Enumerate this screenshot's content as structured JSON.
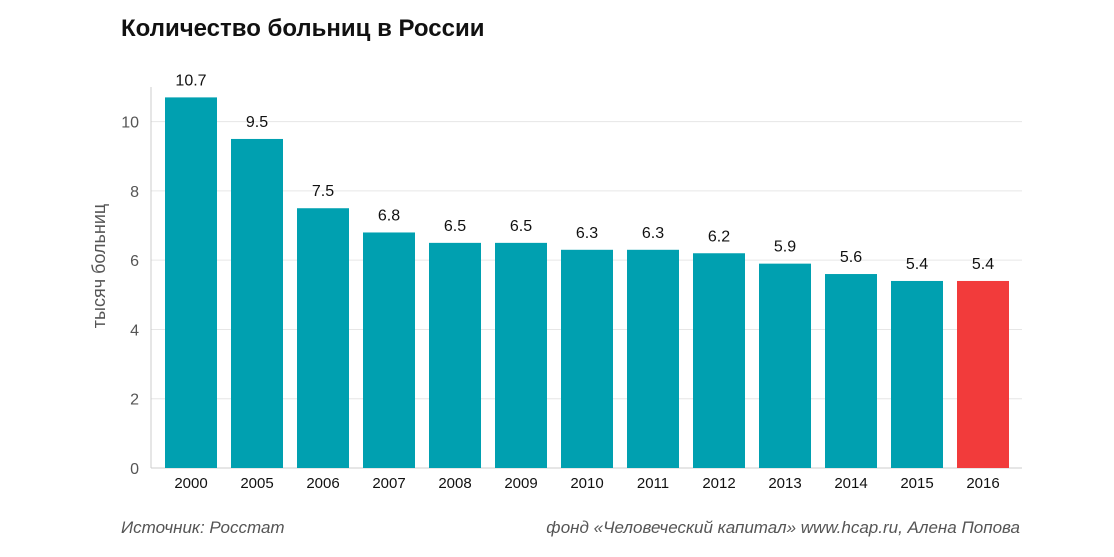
{
  "title": "Количество больниц в России",
  "footer": {
    "source": "Источник: Росстат",
    "credit": "фонд «Человеческий капитал» www.hcap.ru, Алена Попова"
  },
  "colors": {
    "bar": "#00a0b0",
    "highlight": "#f23b3b",
    "grid": "#e6e6e6",
    "axis": "#cccccc",
    "text": "#111111",
    "tick": "#555555"
  },
  "chart_data": {
    "type": "bar",
    "categories": [
      "2000",
      "2005",
      "2006",
      "2007",
      "2008",
      "2009",
      "2010",
      "2011",
      "2012",
      "2013",
      "2014",
      "2015",
      "2016"
    ],
    "values": [
      10.7,
      9.5,
      7.5,
      6.8,
      6.5,
      6.5,
      6.3,
      6.3,
      6.2,
      5.9,
      5.6,
      5.4,
      5.4
    ],
    "data_labels": [
      "10.7",
      "9.5",
      "7.5",
      "6.8",
      "6.5",
      "6.5",
      "6.3",
      "6.3",
      "6.2",
      "5.9",
      "5.6",
      "5.4",
      "5.4"
    ],
    "highlight_category": "2016",
    "title": "Количество больниц в России",
    "xlabel": "",
    "ylabel": "тысяч больниц",
    "ylim": [
      0,
      11
    ],
    "yticks": [
      0,
      2,
      4,
      6,
      8,
      10
    ],
    "grid": true,
    "legend": "none"
  }
}
